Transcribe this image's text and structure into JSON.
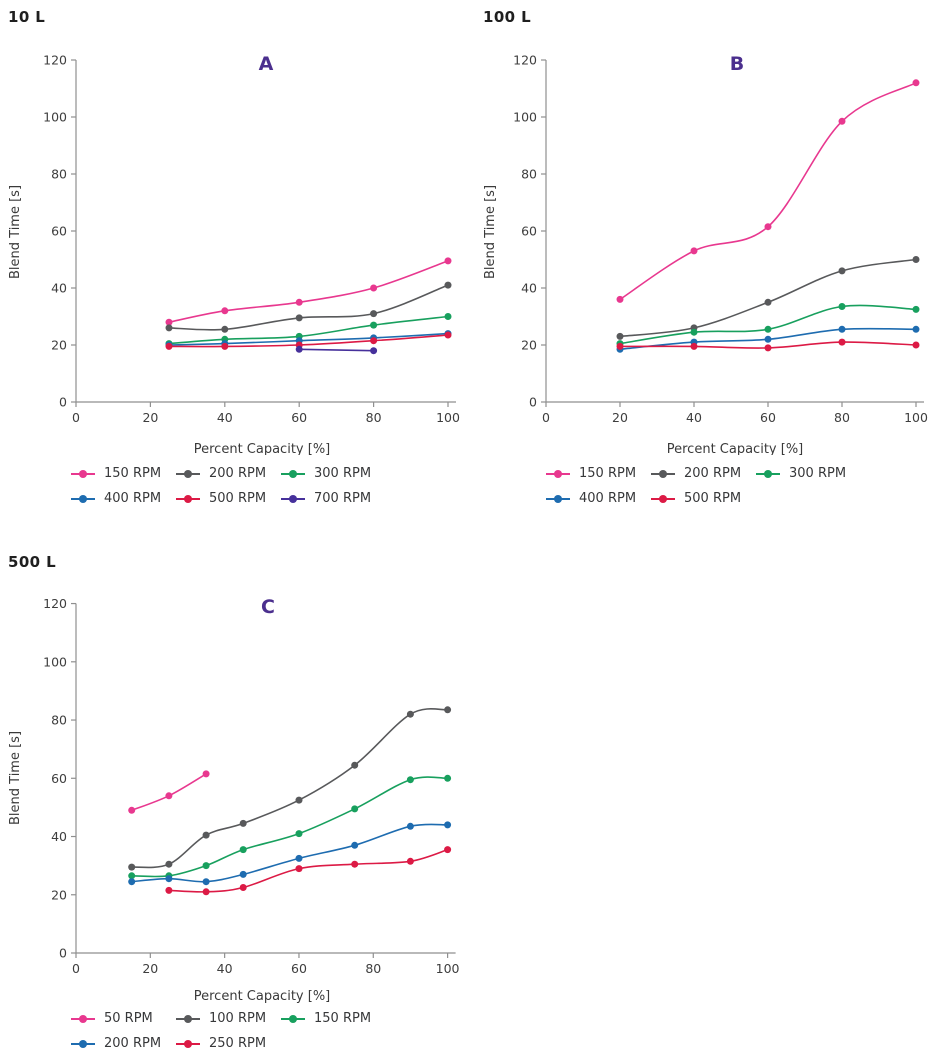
{
  "colors": {
    "background": "#ffffff",
    "axis": "#8f8f8f",
    "tick_text": "#3e3e3e",
    "axis_label_text": "#3a3a3a",
    "legend_text": "#37383a",
    "panel_label": "#4b2f8e",
    "volume_title": "#1f1f1f"
  },
  "chart_data": [
    {
      "type": "line",
      "panel_label": "A",
      "title": "10 L",
      "xlabel": "Percent Capacity [%]",
      "ylabel": "Blend Time [s]",
      "xlim": [
        0,
        106
      ],
      "ylim": [
        0,
        120
      ],
      "xticks": [
        0,
        20,
        40,
        60,
        80,
        100
      ],
      "yticks": [
        0,
        20,
        40,
        60,
        80,
        100,
        120
      ],
      "grid": false,
      "legend_position": "below",
      "series": [
        {
          "name": "150 RPM",
          "color": "#e8388f",
          "x": [
            25,
            40,
            60,
            80,
            100
          ],
          "y": [
            28,
            32,
            35,
            40,
            49.5
          ]
        },
        {
          "name": "200 RPM",
          "color": "#58595b",
          "x": [
            25,
            40,
            60,
            80,
            100
          ],
          "y": [
            26,
            25.5,
            29.5,
            31,
            41
          ]
        },
        {
          "name": "300 RPM",
          "color": "#18a05e",
          "x": [
            25,
            40,
            60,
            80,
            100
          ],
          "y": [
            20.5,
            22,
            23,
            27,
            30
          ]
        },
        {
          "name": "400 RPM",
          "color": "#1e6cb0",
          "x": [
            25,
            40,
            60,
            80,
            100
          ],
          "y": [
            20,
            20.5,
            21.5,
            22.5,
            24
          ]
        },
        {
          "name": "500 RPM",
          "color": "#dc1a45",
          "x": [
            25,
            40,
            60,
            80,
            100
          ],
          "y": [
            19.5,
            19.5,
            20,
            21.5,
            23.5
          ]
        },
        {
          "name": "700 RPM",
          "color": "#46309b",
          "x": [
            60,
            80
          ],
          "y": [
            18.5,
            18
          ]
        }
      ]
    },
    {
      "type": "line",
      "panel_label": "B",
      "title": "100 L",
      "xlabel": "Percent Capacity [%]",
      "ylabel": "Blend Time [s]",
      "xlim": [
        0,
        106
      ],
      "ylim": [
        0,
        120
      ],
      "xticks": [
        0,
        20,
        40,
        60,
        80,
        100
      ],
      "yticks": [
        0,
        20,
        40,
        60,
        80,
        100,
        120
      ],
      "grid": false,
      "legend_position": "below",
      "series": [
        {
          "name": "150 RPM",
          "color": "#e8388f",
          "x": [
            20,
            40,
            60,
            80,
            100
          ],
          "y": [
            36,
            53,
            61.5,
            98.5,
            112
          ]
        },
        {
          "name": "200 RPM",
          "color": "#58595b",
          "x": [
            20,
            40,
            60,
            80,
            100
          ],
          "y": [
            23,
            26,
            35,
            46,
            50
          ]
        },
        {
          "name": "300 RPM",
          "color": "#18a05e",
          "x": [
            20,
            40,
            60,
            80,
            100
          ],
          "y": [
            20.5,
            24.5,
            25.5,
            33.5,
            32.5
          ]
        },
        {
          "name": "400 RPM",
          "color": "#1e6cb0",
          "x": [
            20,
            40,
            60,
            80,
            100
          ],
          "y": [
            18.5,
            21,
            22,
            25.5,
            25.5
          ]
        },
        {
          "name": "500 RPM",
          "color": "#dc1a45",
          "x": [
            20,
            40,
            60,
            80,
            100
          ],
          "y": [
            19.5,
            19.5,
            19,
            21,
            20
          ]
        }
      ]
    },
    {
      "type": "line",
      "panel_label": "C",
      "title": "500 L",
      "xlabel": "Percent Capacity [%]",
      "ylabel": "Blend Time [s]",
      "xlim": [
        0,
        106
      ],
      "ylim": [
        0,
        120
      ],
      "xticks": [
        0,
        20,
        40,
        60,
        80,
        100
      ],
      "yticks": [
        0,
        20,
        40,
        60,
        80,
        100,
        120
      ],
      "grid": false,
      "legend_position": "below",
      "series": [
        {
          "name": "50 RPM",
          "color": "#e8388f",
          "x": [
            15,
            25,
            35
          ],
          "y": [
            49,
            54,
            61.5
          ]
        },
        {
          "name": "100 RPM",
          "color": "#58595b",
          "x": [
            15,
            25,
            35,
            45,
            60,
            75,
            90,
            100
          ],
          "y": [
            29.5,
            30.5,
            40.5,
            44.5,
            52.5,
            64.5,
            82,
            83.5
          ]
        },
        {
          "name": "150 RPM",
          "color": "#18a05e",
          "x": [
            15,
            25,
            35,
            45,
            60,
            75,
            90,
            100
          ],
          "y": [
            26.5,
            26.5,
            30,
            35.5,
            41,
            49.5,
            59.5,
            60
          ]
        },
        {
          "name": "200 RPM",
          "color": "#1e6cb0",
          "x": [
            15,
            25,
            35,
            45,
            60,
            75,
            90,
            100
          ],
          "y": [
            24.5,
            25.5,
            24.5,
            27,
            32.5,
            37,
            43.5,
            44
          ]
        },
        {
          "name": "250 RPM",
          "color": "#dc1a45",
          "x": [
            25,
            35,
            45,
            60,
            75,
            90,
            100
          ],
          "y": [
            21.5,
            21,
            22.5,
            29,
            30.5,
            31.5,
            35.5
          ]
        }
      ]
    }
  ]
}
